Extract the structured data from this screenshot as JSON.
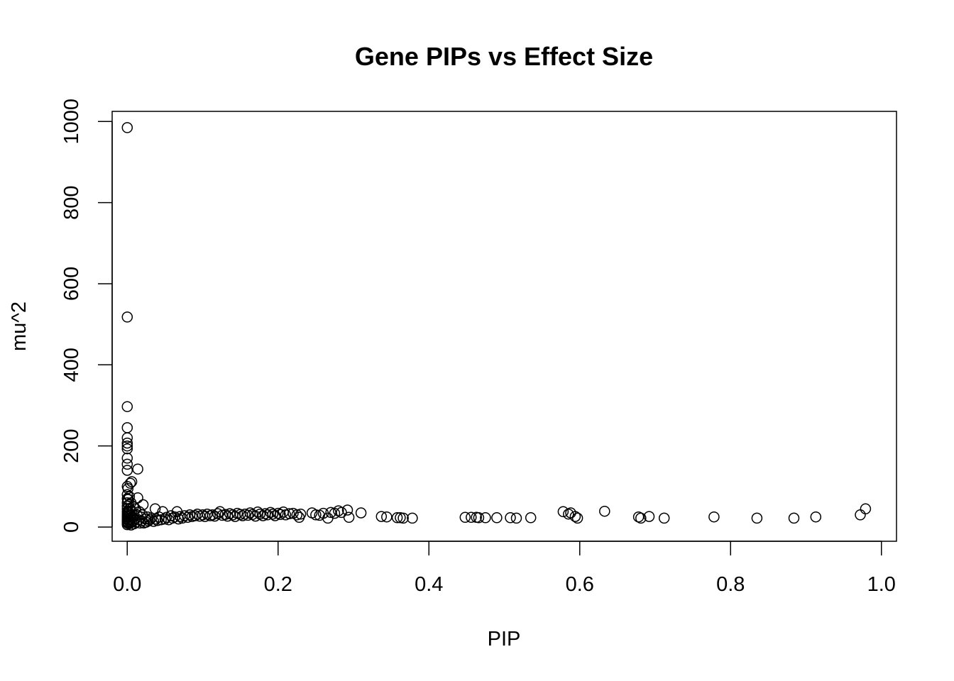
{
  "chart_data": {
    "type": "scatter",
    "title": "Gene PIPs vs Effect Size",
    "xlabel": "PIP",
    "ylabel": "mu^2",
    "xlim": [
      -0.02,
      1.02
    ],
    "ylim": [
      -35,
      1025
    ],
    "x_ticks": [
      {
        "value": 0.0,
        "label": "0.0"
      },
      {
        "value": 0.2,
        "label": "0.2"
      },
      {
        "value": 0.4,
        "label": "0.4"
      },
      {
        "value": 0.6,
        "label": "0.6"
      },
      {
        "value": 0.8,
        "label": "0.8"
      },
      {
        "value": 1.0,
        "label": "1.0"
      }
    ],
    "y_ticks": [
      {
        "value": 0,
        "label": "0"
      },
      {
        "value": 200,
        "label": "200"
      },
      {
        "value": 400,
        "label": "400"
      },
      {
        "value": 600,
        "label": "600"
      },
      {
        "value": 800,
        "label": "800"
      },
      {
        "value": 1000,
        "label": "1000"
      }
    ],
    "grid": false,
    "marker": "open-circle",
    "points": [
      [
        0.0,
        985
      ],
      [
        0.0,
        518
      ],
      [
        0.0,
        297
      ],
      [
        0.0,
        245
      ],
      [
        0.0,
        220
      ],
      [
        0.0,
        207
      ],
      [
        0.0,
        200
      ],
      [
        0.0,
        193
      ],
      [
        0.0,
        170
      ],
      [
        0.0,
        155
      ],
      [
        0.0,
        140
      ],
      [
        0.0,
        100
      ],
      [
        0.0,
        80
      ],
      [
        0.0,
        70
      ],
      [
        0.0,
        60
      ],
      [
        0.0,
        52
      ],
      [
        0.0,
        45
      ],
      [
        0.0,
        38
      ],
      [
        0.0,
        32
      ],
      [
        0.0,
        27
      ],
      [
        0.0,
        22
      ],
      [
        0.0,
        18
      ],
      [
        0.0,
        14
      ],
      [
        0.0,
        10
      ],
      [
        0.0,
        6
      ],
      [
        0.001,
        95
      ],
      [
        0.001,
        68
      ],
      [
        0.001,
        40
      ],
      [
        0.001,
        25
      ],
      [
        0.001,
        12
      ],
      [
        0.002,
        55
      ],
      [
        0.002,
        35
      ],
      [
        0.002,
        20
      ],
      [
        0.002,
        8
      ],
      [
        0.003,
        75
      ],
      [
        0.003,
        45
      ],
      [
        0.003,
        15
      ],
      [
        0.004,
        108
      ],
      [
        0.004,
        30
      ],
      [
        0.004,
        10
      ],
      [
        0.005,
        60
      ],
      [
        0.005,
        20
      ],
      [
        0.005,
        5
      ],
      [
        0.006,
        112
      ],
      [
        0.006,
        40
      ],
      [
        0.006,
        12
      ],
      [
        0.007,
        25
      ],
      [
        0.008,
        50
      ],
      [
        0.008,
        15
      ],
      [
        0.009,
        30
      ],
      [
        0.009,
        8
      ],
      [
        0.01,
        20
      ],
      [
        0.011,
        45
      ],
      [
        0.012,
        12
      ],
      [
        0.013,
        30
      ],
      [
        0.014,
        143
      ],
      [
        0.014,
        72
      ],
      [
        0.015,
        18
      ],
      [
        0.016,
        38
      ],
      [
        0.017,
        10
      ],
      [
        0.018,
        25
      ],
      [
        0.019,
        15
      ],
      [
        0.02,
        30
      ],
      [
        0.021,
        55
      ],
      [
        0.022,
        10
      ],
      [
        0.024,
        20
      ],
      [
        0.025,
        12
      ],
      [
        0.027,
        25
      ],
      [
        0.028,
        15
      ],
      [
        0.03,
        18
      ],
      [
        0.032,
        22
      ],
      [
        0.035,
        14
      ],
      [
        0.037,
        45
      ],
      [
        0.038,
        20
      ],
      [
        0.04,
        16
      ],
      [
        0.042,
        25
      ],
      [
        0.045,
        18
      ],
      [
        0.047,
        38
      ],
      [
        0.05,
        20
      ],
      [
        0.052,
        24
      ],
      [
        0.055,
        18
      ],
      [
        0.058,
        28
      ],
      [
        0.06,
        22
      ],
      [
        0.063,
        25
      ],
      [
        0.066,
        38
      ],
      [
        0.068,
        20
      ],
      [
        0.07,
        26
      ],
      [
        0.073,
        22
      ],
      [
        0.076,
        28
      ],
      [
        0.08,
        24
      ],
      [
        0.083,
        30
      ],
      [
        0.086,
        26
      ],
      [
        0.09,
        28
      ],
      [
        0.093,
        32
      ],
      [
        0.096,
        27
      ],
      [
        0.1,
        30
      ],
      [
        0.103,
        26
      ],
      [
        0.106,
        32
      ],
      [
        0.11,
        28
      ],
      [
        0.113,
        30
      ],
      [
        0.116,
        27
      ],
      [
        0.12,
        33
      ],
      [
        0.123,
        38
      ],
      [
        0.126,
        29
      ],
      [
        0.13,
        31
      ],
      [
        0.133,
        27
      ],
      [
        0.136,
        33
      ],
      [
        0.14,
        30
      ],
      [
        0.143,
        26
      ],
      [
        0.146,
        34
      ],
      [
        0.15,
        31
      ],
      [
        0.153,
        28
      ],
      [
        0.156,
        32
      ],
      [
        0.16,
        29
      ],
      [
        0.163,
        35
      ],
      [
        0.166,
        31
      ],
      [
        0.17,
        27
      ],
      [
        0.173,
        37
      ],
      [
        0.176,
        32
      ],
      [
        0.18,
        28
      ],
      [
        0.183,
        33
      ],
      [
        0.186,
        30
      ],
      [
        0.19,
        36
      ],
      [
        0.193,
        32
      ],
      [
        0.196,
        28
      ],
      [
        0.2,
        34
      ],
      [
        0.203,
        31
      ],
      [
        0.207,
        37
      ],
      [
        0.21,
        30
      ],
      [
        0.215,
        33
      ],
      [
        0.22,
        34
      ],
      [
        0.225,
        30
      ],
      [
        0.228,
        24
      ],
      [
        0.23,
        32
      ],
      [
        0.245,
        35
      ],
      [
        0.25,
        30
      ],
      [
        0.255,
        29
      ],
      [
        0.26,
        34
      ],
      [
        0.266,
        22
      ],
      [
        0.27,
        36
      ],
      [
        0.275,
        34
      ],
      [
        0.28,
        40
      ],
      [
        0.284,
        36
      ],
      [
        0.292,
        42
      ],
      [
        0.294,
        24
      ],
      [
        0.31,
        35
      ],
      [
        0.337,
        26
      ],
      [
        0.344,
        25
      ],
      [
        0.358,
        23
      ],
      [
        0.362,
        23
      ],
      [
        0.366,
        22
      ],
      [
        0.378,
        22
      ],
      [
        0.448,
        24
      ],
      [
        0.456,
        24
      ],
      [
        0.463,
        24
      ],
      [
        0.466,
        23
      ],
      [
        0.475,
        23
      ],
      [
        0.49,
        23
      ],
      [
        0.508,
        23
      ],
      [
        0.516,
        22
      ],
      [
        0.535,
        23
      ],
      [
        0.578,
        38
      ],
      [
        0.585,
        32
      ],
      [
        0.588,
        35
      ],
      [
        0.594,
        26
      ],
      [
        0.597,
        22
      ],
      [
        0.633,
        39
      ],
      [
        0.678,
        25
      ],
      [
        0.681,
        22
      ],
      [
        0.692,
        26
      ],
      [
        0.712,
        22
      ],
      [
        0.778,
        25
      ],
      [
        0.835,
        22
      ],
      [
        0.884,
        22
      ],
      [
        0.913,
        25
      ],
      [
        0.972,
        30
      ],
      [
        0.979,
        45
      ]
    ]
  }
}
